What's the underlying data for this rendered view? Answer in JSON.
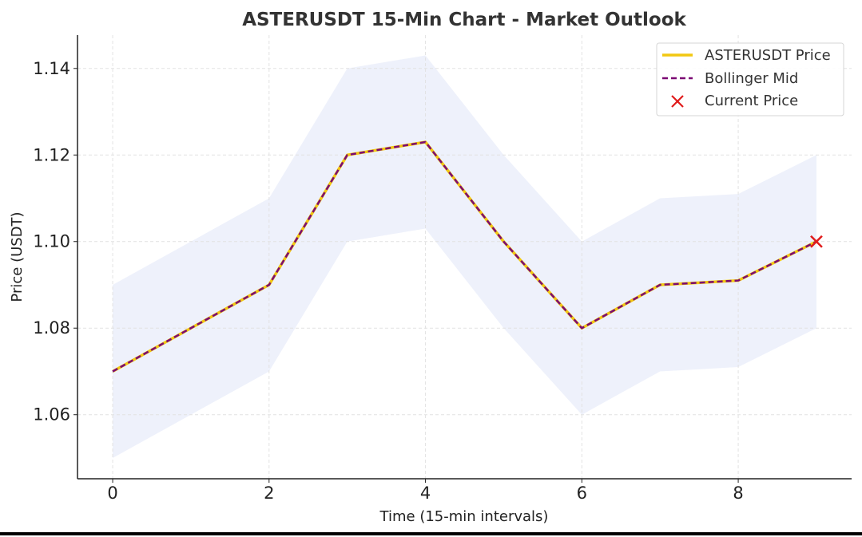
{
  "chart_data": {
    "type": "line",
    "title": "ASTERUSDT 15-Min Chart - Market Outlook",
    "xlabel": "Time (15-min intervals)",
    "ylabel": "Price (USDT)",
    "x": [
      0,
      1,
      2,
      3,
      4,
      5,
      6,
      7,
      8,
      9
    ],
    "xticks": [
      0,
      2,
      4,
      6,
      8
    ],
    "xtick_labels": [
      "0",
      "2",
      "4",
      "6",
      "8"
    ],
    "yticks": [
      1.06,
      1.08,
      1.1,
      1.12,
      1.14
    ],
    "ytick_labels": [
      "1.06",
      "1.08",
      "1.10",
      "1.12",
      "1.14"
    ],
    "xlim": [
      -0.45,
      9.45
    ],
    "ylim": [
      1.0452,
      1.1477
    ],
    "grid": true,
    "legend_position": "top-right",
    "series": [
      {
        "name": "ASTERUSDT Price",
        "kind": "line",
        "color": "#f2c811",
        "values": [
          1.07,
          1.08,
          1.09,
          1.12,
          1.123,
          1.1,
          1.08,
          1.09,
          1.091,
          1.1
        ]
      },
      {
        "name": "Bollinger Mid",
        "kind": "dashed-line",
        "color": "#7b0a73",
        "values": [
          1.07,
          1.08,
          1.09,
          1.12,
          1.123,
          1.1,
          1.08,
          1.09,
          1.091,
          1.1
        ]
      },
      {
        "name": "Current Price",
        "kind": "marker-x",
        "color": "#e01b1b",
        "point": {
          "x": 9,
          "y": 1.1
        }
      }
    ],
    "band": {
      "color": "#eef1fb",
      "upper": [
        1.09,
        1.1,
        1.11,
        1.14,
        1.143,
        1.12,
        1.1,
        1.11,
        1.111,
        1.12
      ],
      "lower": [
        1.05,
        1.06,
        1.07,
        1.1,
        1.103,
        1.08,
        1.06,
        1.07,
        1.071,
        1.08
      ]
    }
  }
}
